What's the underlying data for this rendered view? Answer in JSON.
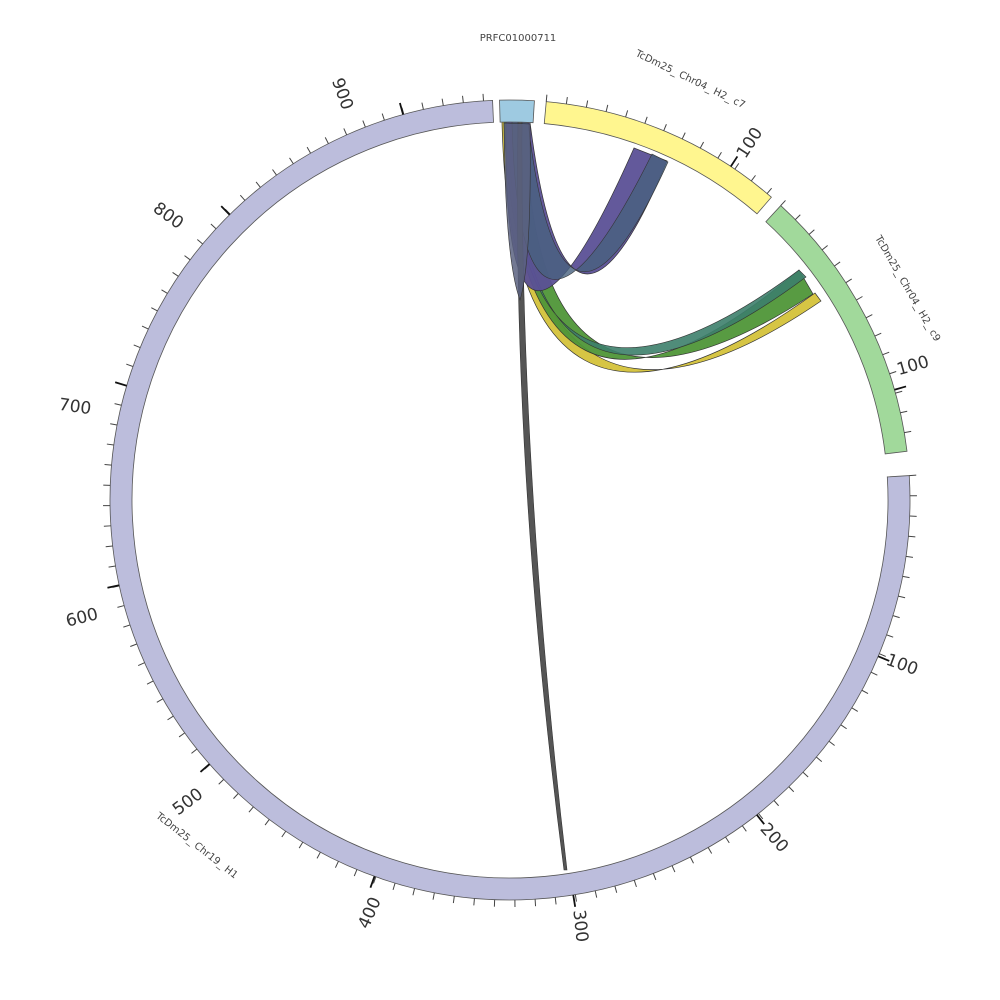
{
  "diagram": {
    "segments": [
      {
        "id": "prfc",
        "name": "PRFC01000711",
        "color": "#9ecae1"
      },
      {
        "id": "c7",
        "name": "TcDm25_ Chr04_ H2_ c7",
        "color": "#fff68f",
        "tick_labels": [
          "100"
        ]
      },
      {
        "id": "c9",
        "name": "TcDm25_ Chr04_ H2_ c9",
        "color": "#a1d99b",
        "tick_labels": [
          "100"
        ]
      },
      {
        "id": "chr19",
        "name": "TcDm25_ Chr19_ H1",
        "color": "#bcbddc",
        "tick_labels": [
          "100",
          "200",
          "300",
          "400",
          "500",
          "600",
          "700",
          "800",
          "900"
        ]
      }
    ],
    "links": [
      {
        "from": "PRFC01000711",
        "to": "TcDm25_ Chr04_ H2_ c7",
        "color": "#5b5096"
      },
      {
        "from": "PRFC01000711",
        "to": "TcDm25_ Chr04_ H2_ c9",
        "color": "#4f9638"
      },
      {
        "from": "PRFC01000711",
        "to": "TcDm25_ Chr04_ H2_ c9",
        "color": "#d4c23a"
      },
      {
        "from": "PRFC01000711",
        "to": "TcDm25_ Chr19_ H1",
        "color": "#555555"
      }
    ]
  }
}
